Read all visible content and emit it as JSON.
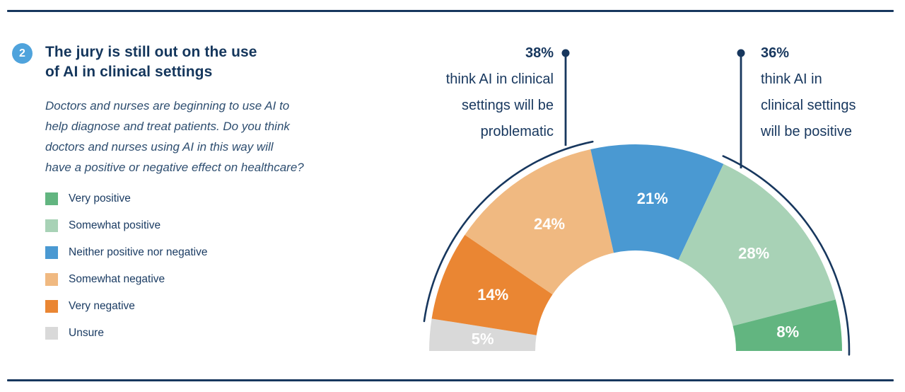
{
  "header": {
    "badge_number": "2",
    "title_line1": "The jury is still out on the use",
    "title_line2": "of AI in clinical settings",
    "description_lines": [
      "Doctors and nurses are beginning to use AI to",
      "help diagnose and treat patients. Do you think",
      "doctors and nurses using AI in this way will",
      "have a positive or negative effect on healthcare?"
    ]
  },
  "legend": {
    "items": [
      {
        "label": "Very positive",
        "color": "#62B580"
      },
      {
        "label": "Somewhat positive",
        "color": "#A8D2B6"
      },
      {
        "label": "Neither positive nor negative",
        "color": "#4A99D2"
      },
      {
        "label": "Somewhat negative",
        "color": "#F0B981"
      },
      {
        "label": "Very negative",
        "color": "#EA8633"
      },
      {
        "label": "Unsure",
        "color": "#D9D9D9"
      }
    ]
  },
  "chart_data": {
    "type": "pie",
    "variant": "semicircle-donut",
    "title": "The jury is still out on the use of AI in clinical settings",
    "unit": "%",
    "segments": [
      {
        "label": "Unsure",
        "value": 5,
        "color": "#D9D9D9"
      },
      {
        "label": "Very negative",
        "value": 14,
        "color": "#EA8633"
      },
      {
        "label": "Somewhat negative",
        "value": 24,
        "color": "#F0B981"
      },
      {
        "label": "Neither positive nor negative",
        "value": 21,
        "color": "#4A99D2"
      },
      {
        "label": "Somewhat positive",
        "value": 28,
        "color": "#A8D2B6"
      },
      {
        "label": "Very positive",
        "value": 8,
        "color": "#62B580"
      }
    ],
    "callouts": [
      {
        "value": "38%",
        "lines": [
          "think AI in clinical",
          "settings will be",
          "problematic"
        ],
        "covers_segments": [
          1,
          2
        ],
        "side": "left"
      },
      {
        "value": "36%",
        "lines": [
          "think AI in",
          "clinical settings",
          "will be positive"
        ],
        "covers_segments": [
          4,
          5
        ],
        "side": "right"
      }
    ],
    "colors": {
      "accent_navy": "#17375E",
      "badge_blue": "#4FA3DC",
      "segment_label_text": "#FFFFFF"
    }
  }
}
